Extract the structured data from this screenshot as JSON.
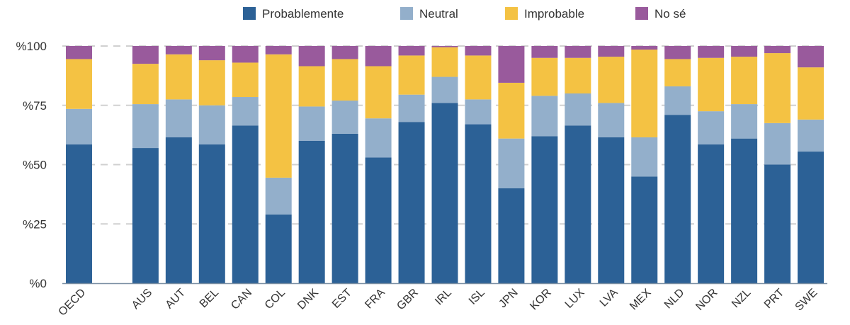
{
  "chart_data": {
    "type": "bar",
    "stacked": true,
    "categories": [
      "OECD",
      "",
      "AUS",
      "AUT",
      "BEL",
      "CAN",
      "COL",
      "DNK",
      "EST",
      "FRA",
      "GBR",
      "IRL",
      "ISL",
      "JPN",
      "KOR",
      "LUX",
      "LVA",
      "MEX",
      "NLD",
      "NOR",
      "NZL",
      "PRT",
      "SWE"
    ],
    "series": [
      {
        "name": "Probablemente",
        "color": "#2c6196",
        "values": [
          58.5,
          null,
          57,
          61.5,
          58.5,
          66.5,
          29,
          60,
          63,
          53,
          68,
          76,
          67,
          40,
          62,
          66.5,
          61.5,
          45,
          71,
          58.5,
          61,
          50,
          55.5
        ]
      },
      {
        "name": "Neutral",
        "color": "#93afcb",
        "values": [
          15,
          null,
          18.5,
          16,
          16.5,
          12,
          15.5,
          14.5,
          14,
          16.5,
          11.5,
          11,
          10.5,
          21,
          17,
          13.5,
          14.5,
          16.5,
          12,
          14,
          14.5,
          17.5,
          13.5
        ]
      },
      {
        "name": "Improbable",
        "color": "#f4c243",
        "values": [
          21,
          null,
          17,
          19,
          19,
          14.5,
          52,
          17,
          17.5,
          22,
          16.5,
          12.5,
          18.5,
          23.5,
          16,
          15,
          19.5,
          37,
          11.5,
          22.5,
          20,
          29.5,
          22
        ]
      },
      {
        "name": "No sé",
        "color": "#995a9c",
        "values": [
          5.5,
          null,
          7.5,
          3.5,
          6,
          7,
          3.5,
          8.5,
          5.5,
          8.5,
          4,
          0.5,
          4,
          15.5,
          5,
          5,
          4.5,
          1.5,
          5.5,
          5,
          4.5,
          3,
          9
        ]
      }
    ],
    "y_ticks": [
      "%0",
      "%25",
      "%50",
      "%75",
      "%100"
    ],
    "ylim": [
      0,
      100
    ],
    "grid": true,
    "legend": "top-center",
    "title": "",
    "xlabel": "",
    "ylabel": ""
  }
}
